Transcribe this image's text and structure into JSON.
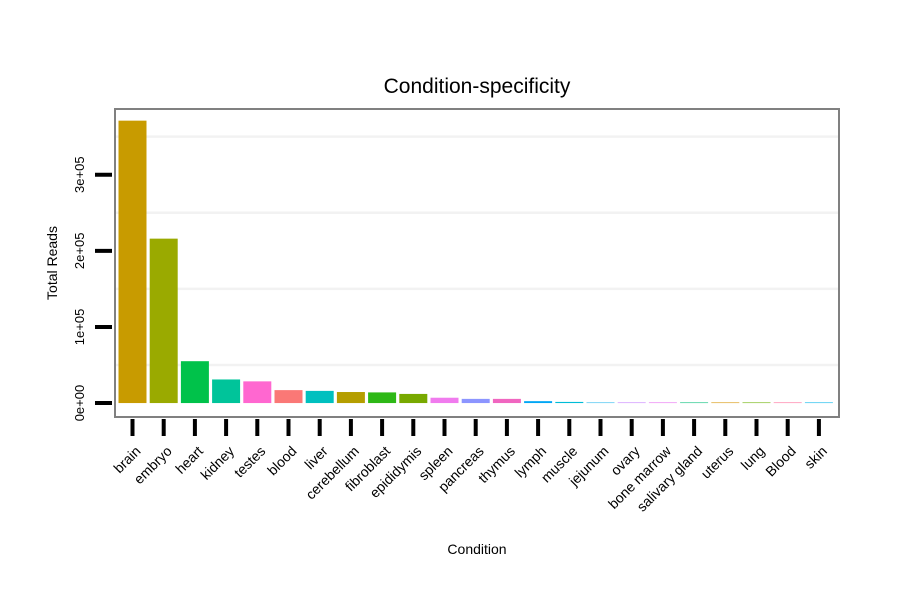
{
  "chart_data": {
    "type": "bar",
    "title": "Condition-specificity",
    "xlabel": "Condition",
    "ylabel": "Total Reads",
    "categories": [
      "brain",
      "embryo",
      "heart",
      "kidney",
      "testes",
      "blood",
      "liver",
      "cerebellum",
      "fibroblast",
      "epididymis",
      "spleen",
      "pancreas",
      "thymus",
      "lymph",
      "muscle",
      "jejunum",
      "ovary",
      "bone marrow",
      "salivary gland",
      "uterus",
      "lung",
      "Blood",
      "skin"
    ],
    "values": [
      371000,
      216000,
      55000,
      31000,
      28500,
      17000,
      16000,
      14500,
      14000,
      12000,
      7000,
      5500,
      5500,
      2500,
      1500,
      300,
      200,
      200,
      150,
      100,
      100,
      100,
      100
    ],
    "colors": [
      "#C89B00",
      "#9AAA00",
      "#00C24A",
      "#00C49A",
      "#FF67D0",
      "#FA7876",
      "#00C0BF",
      "#B59E00",
      "#2EB816",
      "#78A900",
      "#F07BEE",
      "#8C95FF",
      "#F066C0",
      "#00A6F5",
      "#00BCD7",
      "#29B9EF",
      "#C67FFF",
      "#E86DF2",
      "#00BF78",
      "#D69400",
      "#6BB100",
      "#FF6B98",
      "#00B5E9"
    ],
    "yticks": [
      0,
      100000,
      200000,
      300000
    ],
    "ytick_labels": [
      "0e+00",
      "1e+05",
      "2e+05",
      "3e+05"
    ],
    "ylim": [
      -17000,
      385000
    ],
    "grid": true
  }
}
